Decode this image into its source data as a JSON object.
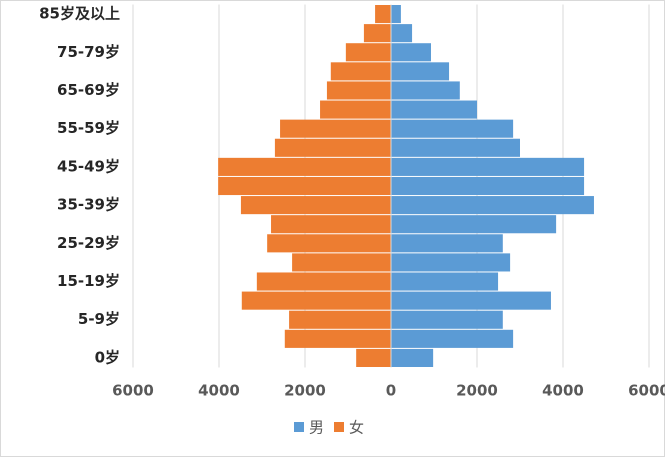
{
  "chart_data": {
    "type": "population-pyramid",
    "categories": [
      "0岁",
      null,
      "5-9岁",
      null,
      "15-19岁",
      null,
      "25-29岁",
      null,
      "35-39岁",
      null,
      "45-49岁",
      null,
      "55-59岁",
      null,
      "65-69岁",
      null,
      "75-79岁",
      null,
      "85岁及以上"
    ],
    "series": [
      {
        "name": "男",
        "color": "#5b9bd5",
        "values": [
          980,
          2840,
          2600,
          3720,
          2490,
          2770,
          2600,
          3840,
          4720,
          4490,
          4490,
          3000,
          2840,
          2000,
          1600,
          1350,
          930,
          490,
          230
        ]
      },
      {
        "name": "女",
        "color": "#ed7d31",
        "values": [
          -810,
          -2470,
          -2370,
          -3470,
          -3120,
          -2300,
          -2880,
          -2790,
          -3490,
          -4020,
          -4020,
          -2700,
          -2580,
          -1650,
          -1490,
          -1400,
          -1050,
          -630,
          -370
        ]
      }
    ],
    "xlim": [
      -6000,
      6000
    ],
    "xticks": [
      {
        "value": -6000,
        "label": "6000"
      },
      {
        "value": -4000,
        "label": "4000"
      },
      {
        "value": -2000,
        "label": "2000"
      },
      0,
      2000,
      4000,
      6000
    ],
    "grid": true,
    "legend": "bottom"
  }
}
